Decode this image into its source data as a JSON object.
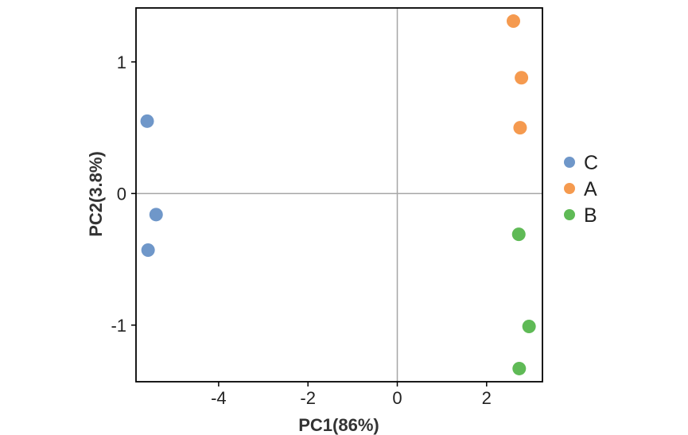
{
  "chart_data": {
    "type": "scatter",
    "title": "",
    "xlabel": "PC1(86%)",
    "ylabel": "PC2(3.8%)",
    "xlim": [
      -5.85,
      3.25
    ],
    "ylim": [
      -1.43,
      1.41
    ],
    "xticks": [
      -4,
      -2,
      0,
      2
    ],
    "yticks": [
      -1,
      0,
      1
    ],
    "xtick_labels": [
      "-4",
      "-2",
      "0",
      "2"
    ],
    "ytick_labels": [
      "-1",
      "0",
      "1"
    ],
    "reference_lines": {
      "x": 0,
      "y": 0,
      "color": "#a6a6a6"
    },
    "grid": false,
    "legend": {
      "position": "right"
    },
    "series": [
      {
        "name": "C",
        "color": "#6f97c9",
        "points": [
          [
            -5.6,
            0.55
          ],
          [
            -5.4,
            -0.16
          ],
          [
            -5.58,
            -0.43
          ]
        ]
      },
      {
        "name": "A",
        "color": "#f59a4f",
        "points": [
          [
            2.6,
            1.31
          ],
          [
            2.78,
            0.88
          ],
          [
            2.75,
            0.5
          ]
        ]
      },
      {
        "name": "B",
        "color": "#5fba56",
        "points": [
          [
            2.72,
            -0.31
          ],
          [
            2.95,
            -1.01
          ],
          [
            2.73,
            -1.33
          ]
        ]
      }
    ]
  }
}
